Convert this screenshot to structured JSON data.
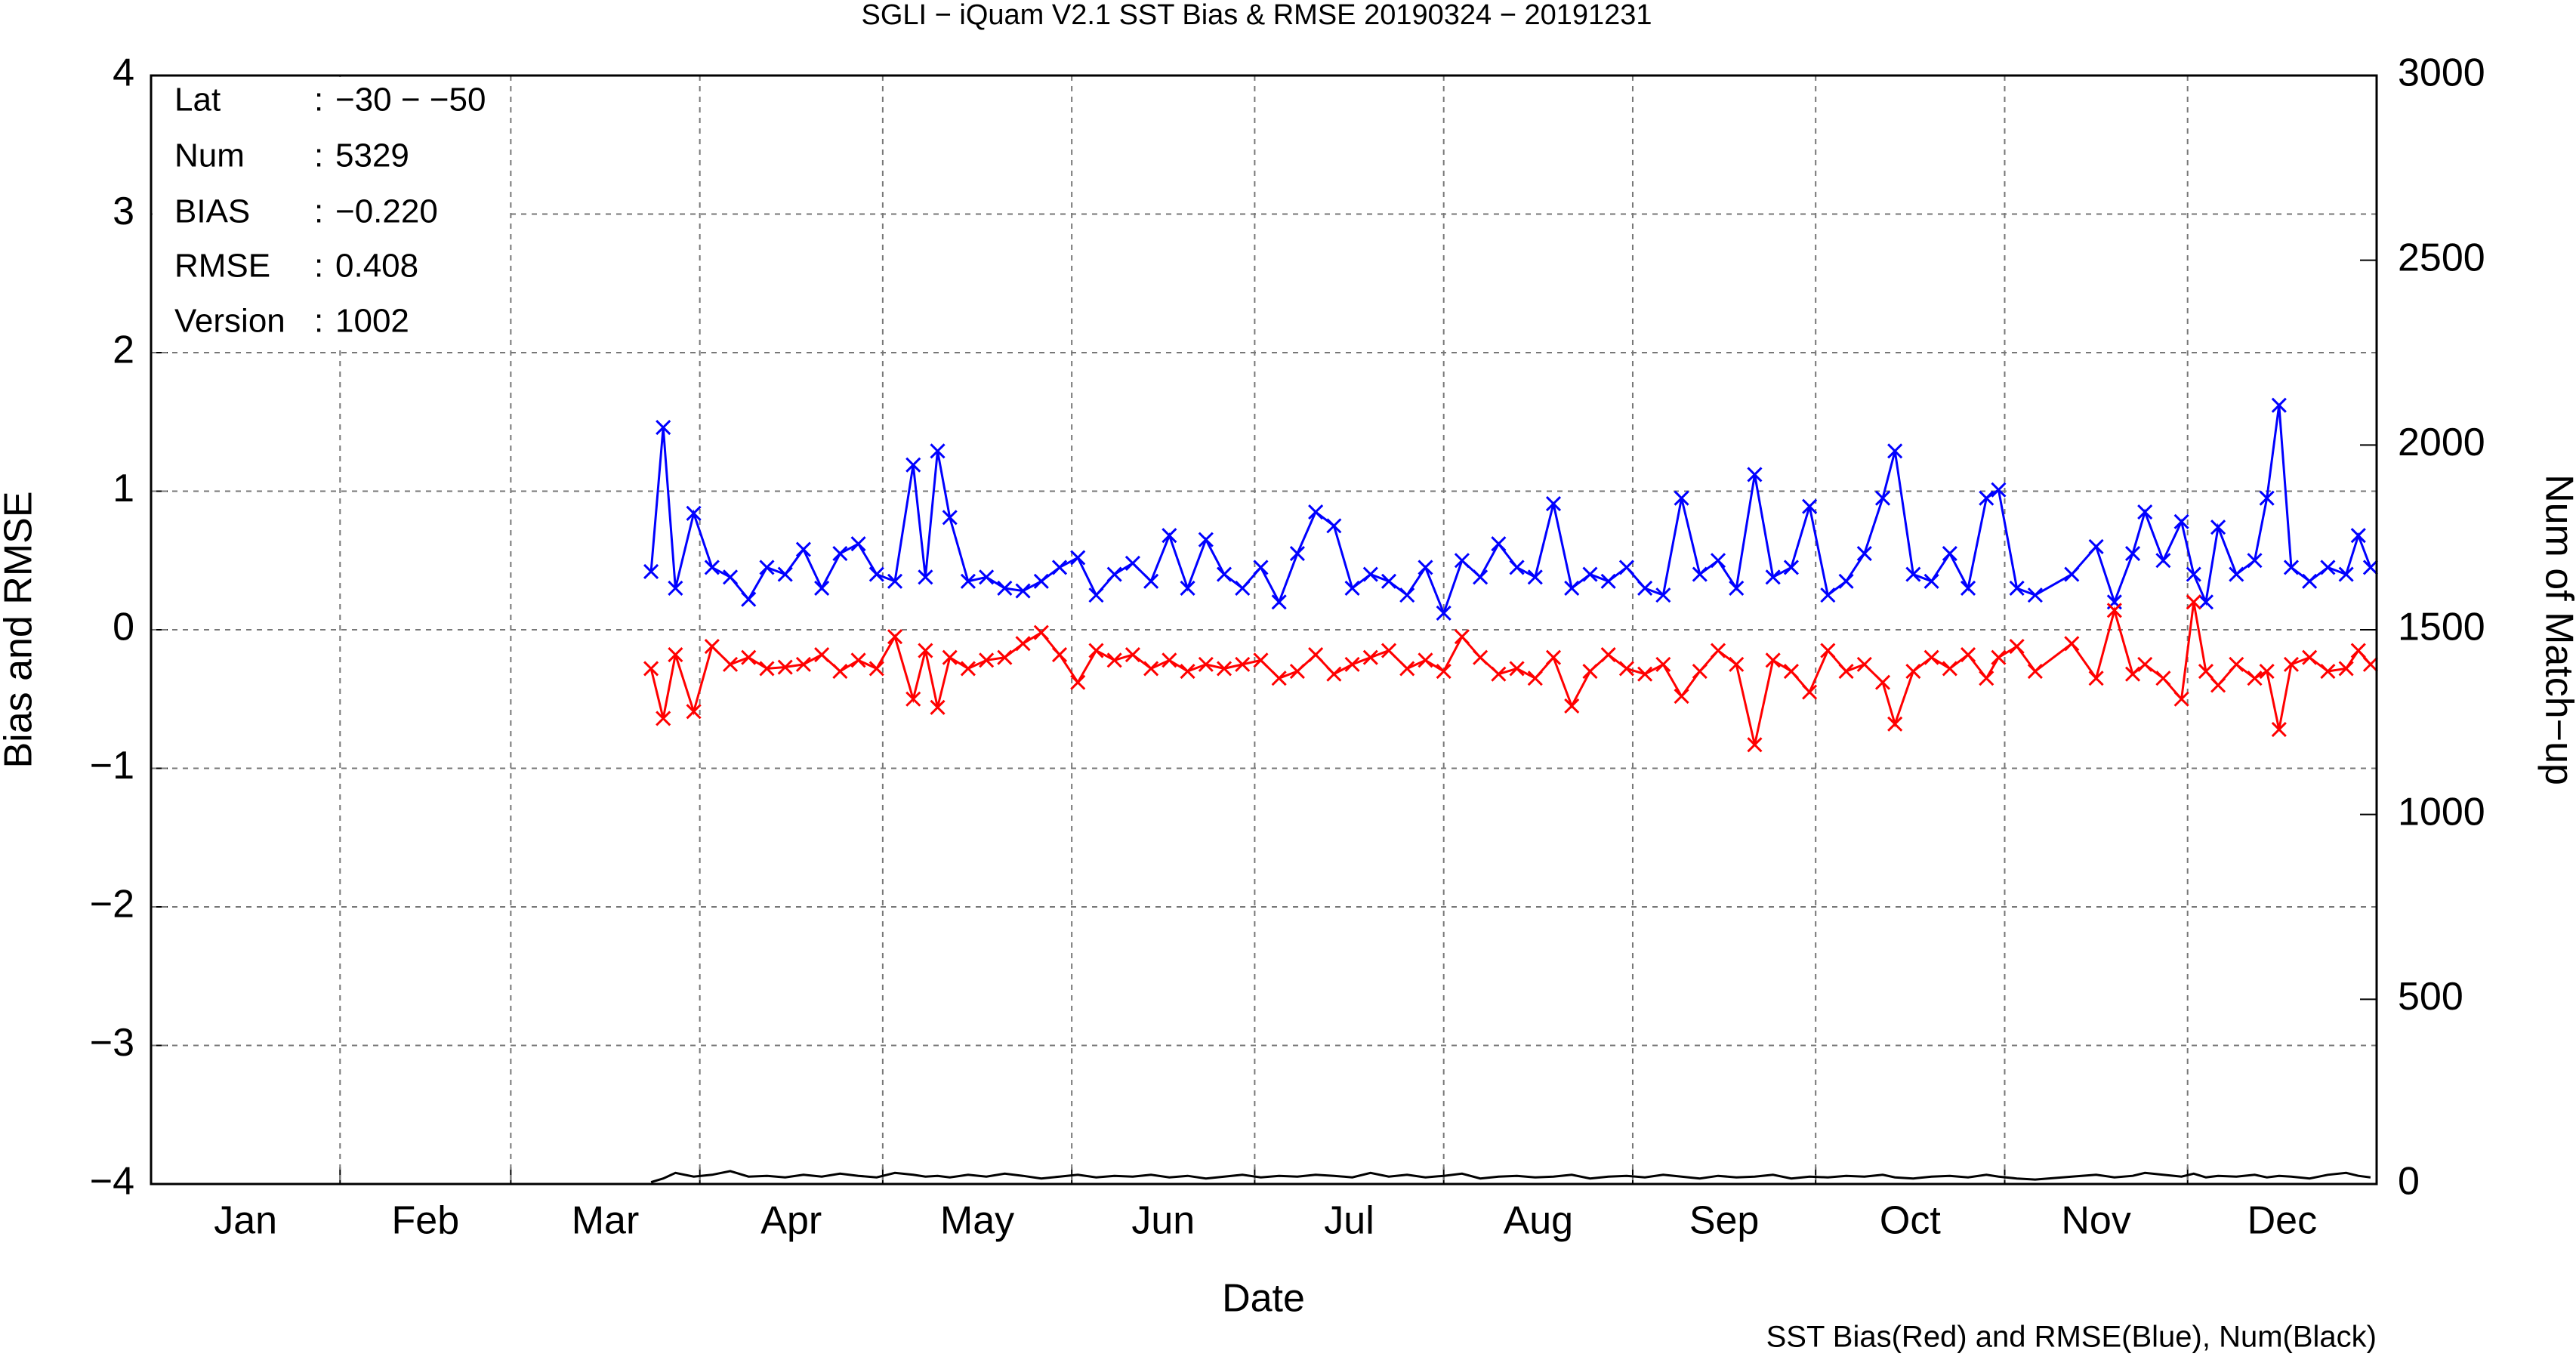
{
  "chart_data": {
    "type": "line",
    "title": "SGLI − iQuam V2.1 SST Bias & RMSE 20190324 − 20191231",
    "xlabel": "Date",
    "ylabel": "Bias and RMSE",
    "y2label": "Num of Match−up",
    "footnote": "SST Bias(Red) and RMSE(Blue), Num(Black)",
    "stats_separator": ":",
    "stats": [
      {
        "label": "Lat",
        "value": "−30 − −50"
      },
      {
        "label": "Num",
        "value": 5329
      },
      {
        "label": "BIAS",
        "value": "−0.220"
      },
      {
        "label": "RMSE",
        "value": 0.408
      },
      {
        "label": "Version",
        "value": 1002
      }
    ],
    "categories": [
      "Jan",
      "Feb",
      "Mar",
      "Apr",
      "May",
      "Jun",
      "Jul",
      "Aug",
      "Sep",
      "Oct",
      "Nov",
      "Dec"
    ],
    "xlim": [
      1,
      366
    ],
    "xticks": [
      1,
      32,
      60,
      91,
      121,
      152,
      182,
      213,
      244,
      274,
      305,
      335,
      366
    ],
    "ylim": [
      -4,
      4
    ],
    "yticks": [
      {
        "value": -4,
        "label": "−4"
      },
      {
        "value": -3,
        "label": "−3"
      },
      {
        "value": -2,
        "label": "−2"
      },
      {
        "value": -1,
        "label": "−1"
      },
      0,
      1,
      2,
      3,
      4
    ],
    "y2lim": [
      0,
      3000
    ],
    "y2ticks": [
      0,
      500,
      1000,
      1500,
      2000,
      2500,
      3000
    ],
    "grid": true,
    "x": [
      83,
      85,
      87,
      90,
      93,
      96,
      99,
      102,
      105,
      108,
      111,
      114,
      117,
      120,
      123,
      126,
      128,
      130,
      132,
      135,
      138,
      141,
      144,
      147,
      150,
      153,
      156,
      159,
      162,
      165,
      168,
      171,
      174,
      177,
      180,
      183,
      186,
      189,
      192,
      195,
      198,
      201,
      204,
      207,
      210,
      213,
      216,
      219,
      222,
      225,
      228,
      231,
      234,
      237,
      240,
      243,
      246,
      249,
      252,
      255,
      258,
      261,
      264,
      267,
      270,
      273,
      276,
      279,
      282,
      285,
      287,
      290,
      293,
      296,
      299,
      302,
      304,
      307,
      310,
      316,
      320,
      323,
      326,
      328,
      331,
      334,
      336,
      338,
      340,
      343,
      346,
      348,
      350,
      352,
      355,
      358,
      361,
      363,
      365
    ],
    "series": [
      {
        "name": "RMSE",
        "color": "#0000ff",
        "values": [
          0.42,
          1.46,
          0.3,
          0.84,
          0.45,
          0.38,
          0.22,
          0.45,
          0.4,
          0.58,
          0.3,
          0.55,
          0.62,
          0.4,
          0.35,
          1.19,
          0.38,
          1.29,
          0.81,
          0.35,
          0.38,
          0.3,
          0.28,
          0.35,
          0.45,
          0.52,
          0.25,
          0.4,
          0.48,
          0.35,
          0.68,
          0.3,
          0.65,
          0.4,
          0.3,
          0.45,
          0.2,
          0.55,
          0.85,
          0.75,
          0.3,
          0.4,
          0.35,
          0.25,
          0.45,
          0.12,
          0.5,
          0.38,
          0.62,
          0.45,
          0.38,
          0.91,
          0.3,
          0.4,
          0.35,
          0.45,
          0.3,
          0.25,
          0.95,
          0.4,
          0.5,
          0.3,
          1.12,
          0.38,
          0.45,
          0.89,
          0.25,
          0.35,
          0.55,
          0.95,
          1.29,
          0.4,
          0.35,
          0.55,
          0.3,
          0.95,
          1.01,
          0.3,
          0.25,
          0.4,
          0.6,
          0.2,
          0.55,
          0.85,
          0.5,
          0.78,
          0.4,
          0.2,
          0.74,
          0.4,
          0.5,
          0.95,
          1.62,
          0.45,
          0.35,
          0.45,
          0.4,
          0.68,
          0.45
        ]
      },
      {
        "name": "Bias",
        "color": "#ff0000",
        "values": [
          -0.28,
          -0.64,
          -0.18,
          -0.59,
          -0.12,
          -0.25,
          -0.2,
          -0.28,
          -0.27,
          -0.25,
          -0.18,
          -0.3,
          -0.22,
          -0.28,
          -0.05,
          -0.5,
          -0.15,
          -0.56,
          -0.2,
          -0.28,
          -0.22,
          -0.2,
          -0.1,
          -0.02,
          -0.18,
          -0.38,
          -0.15,
          -0.22,
          -0.18,
          -0.28,
          -0.22,
          -0.3,
          -0.25,
          -0.28,
          -0.25,
          -0.22,
          -0.35,
          -0.3,
          -0.18,
          -0.32,
          -0.25,
          -0.2,
          -0.15,
          -0.28,
          -0.22,
          -0.3,
          -0.05,
          -0.2,
          -0.32,
          -0.28,
          -0.35,
          -0.2,
          -0.55,
          -0.3,
          -0.18,
          -0.28,
          -0.32,
          -0.25,
          -0.48,
          -0.3,
          -0.15,
          -0.25,
          -0.83,
          -0.22,
          -0.3,
          -0.45,
          -0.15,
          -0.3,
          -0.25,
          -0.38,
          -0.68,
          -0.3,
          -0.2,
          -0.28,
          -0.18,
          -0.35,
          -0.2,
          -0.12,
          -0.3,
          -0.1,
          -0.35,
          0.14,
          -0.32,
          -0.25,
          -0.35,
          -0.5,
          0.2,
          -0.3,
          -0.4,
          -0.25,
          -0.35,
          -0.3,
          -0.72,
          -0.25,
          -0.2,
          -0.3,
          -0.28,
          -0.15,
          -0.25
        ]
      },
      {
        "name": "Num",
        "color": "#000000",
        "axis": "y2",
        "values": [
          5,
          15,
          30,
          20,
          25,
          35,
          20,
          22,
          18,
          25,
          20,
          28,
          22,
          18,
          30,
          25,
          20,
          22,
          18,
          25,
          20,
          28,
          22,
          15,
          20,
          25,
          18,
          22,
          20,
          25,
          18,
          22,
          15,
          20,
          25,
          18,
          22,
          20,
          25,
          22,
          18,
          30,
          20,
          25,
          18,
          22,
          28,
          15,
          20,
          22,
          18,
          20,
          25,
          15,
          20,
          22,
          18,
          25,
          20,
          15,
          22,
          18,
          20,
          25,
          15,
          20,
          18,
          22,
          20,
          25,
          18,
          15,
          20,
          22,
          18,
          25,
          20,
          15,
          12,
          20,
          25,
          18,
          22,
          30,
          25,
          20,
          28,
          18,
          22,
          20,
          25,
          18,
          22,
          20,
          15,
          25,
          30,
          22,
          18
        ]
      }
    ]
  }
}
